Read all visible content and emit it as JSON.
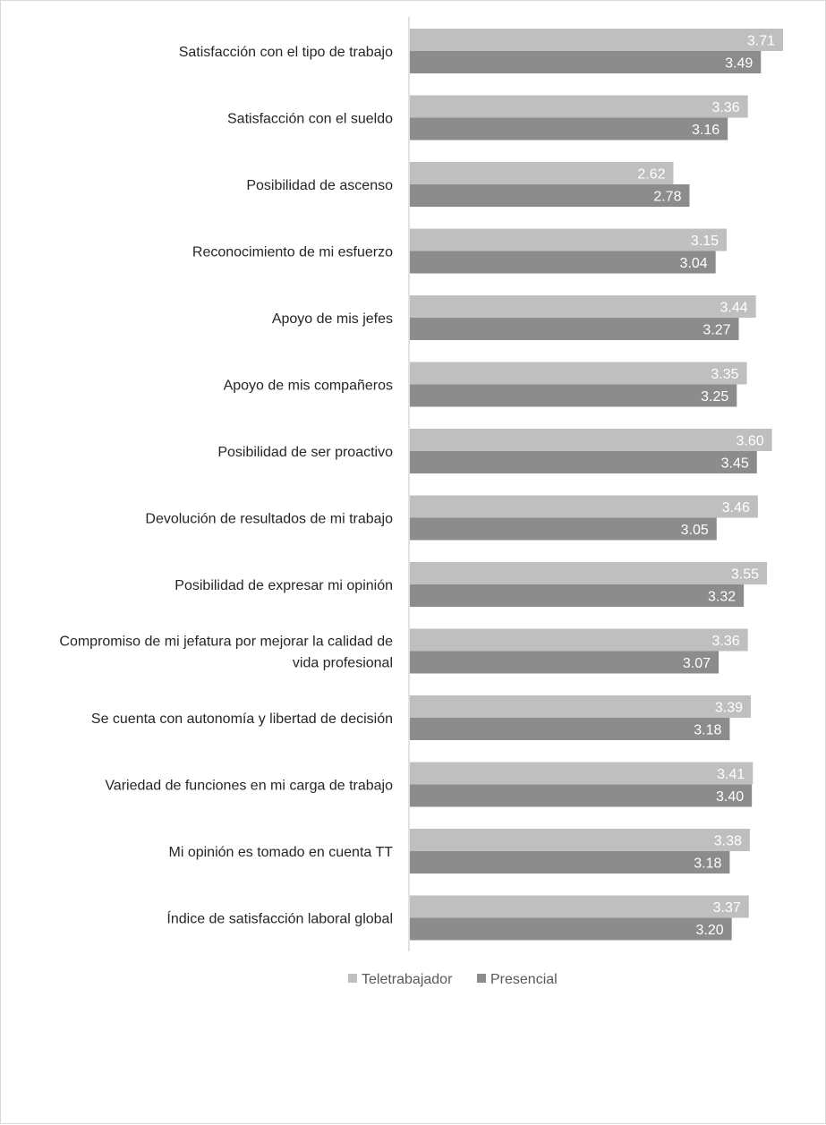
{
  "chart_data": {
    "type": "bar",
    "orientation": "horizontal",
    "categories": [
      [
        "Satisfacción con el tipo de trabajo"
      ],
      [
        "Satisfacción con el sueldo"
      ],
      [
        "Posibilidad de ascenso"
      ],
      [
        "Reconocimiento de mi esfuerzo"
      ],
      [
        "Apoyo de mis jefes"
      ],
      [
        "Apoyo de mis compañeros"
      ],
      [
        "Posibilidad de ser proactivo"
      ],
      [
        "Devolución de resultados de mi trabajo"
      ],
      [
        "Posibilidad de expresar mi opinión"
      ],
      [
        "Compromiso de mi jefatura por mejorar la calidad de",
        "vida profesional"
      ],
      [
        "Se cuenta con autonomía y libertad de decisión"
      ],
      [
        "Variedad de funciones en mi carga de trabajo"
      ],
      [
        "Mi opinión es tomado en cuenta TT"
      ],
      [
        "Índice de satisfacción laboral global"
      ]
    ],
    "series": [
      {
        "name": "Teletrabajador",
        "color": "#bfbfbf",
        "values": [
          3.71,
          3.36,
          2.62,
          3.15,
          3.44,
          3.35,
          3.6,
          3.46,
          3.55,
          3.36,
          3.39,
          3.41,
          3.38,
          3.37
        ],
        "labels": [
          "3.71",
          "3.36",
          "2.62",
          "3.15",
          "3.44",
          "3.35",
          "3.60",
          "3.46",
          "3.55",
          "3.36",
          "3.39",
          "3.41",
          "3.38",
          "3.37"
        ]
      },
      {
        "name": "Presencial",
        "color": "#8c8c8c",
        "values": [
          3.49,
          3.16,
          2.78,
          3.04,
          3.27,
          3.25,
          3.45,
          3.05,
          3.32,
          3.07,
          3.18,
          3.4,
          3.18,
          3.2
        ],
        "labels": [
          "3.49",
          "3.16",
          "2.78",
          "3.04",
          "3.27",
          "3.25",
          "3.45",
          "3.05",
          "3.32",
          "3.07",
          "3.18",
          "3.40",
          "3.18",
          "3.20"
        ]
      }
    ],
    "xlim": [
      0,
      3.75
    ],
    "legend_position": "bottom",
    "grid": false,
    "axis_line_color": "#d9d9d9",
    "value_label_color": "#ffffff"
  }
}
